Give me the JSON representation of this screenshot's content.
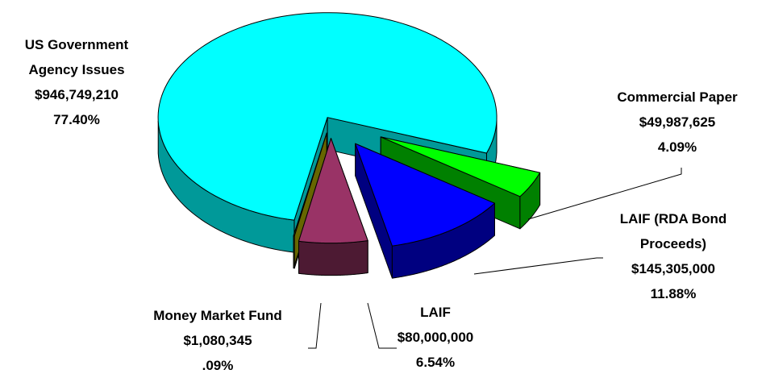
{
  "chart_data": {
    "type": "pie",
    "categories": [
      "US Government Agency Issues",
      "Commercial Paper",
      "LAIF (RDA Bond Proceeds)",
      "LAIF",
      "Money Market Fund"
    ],
    "values": [
      946749210,
      49987625,
      145305000,
      80000000,
      1080345
    ],
    "value_labels": [
      "$946,749,210",
      "$49,987,625",
      "$145,305,000",
      "$80,000,000",
      "$1,080,345"
    ],
    "percents": [
      77.4,
      4.09,
      11.88,
      6.54,
      0.09
    ],
    "percent_labels": [
      "77.40%",
      "4.09%",
      "11.88%",
      "6.54%",
      ".09%"
    ],
    "colors": [
      "#00FFFF",
      "#00FF00",
      "#0000FF",
      "#993366",
      "#CCCC00"
    ],
    "side_colors": [
      "#009999",
      "#008000",
      "#000080",
      "#4D1A33",
      "#666600"
    ]
  }
}
